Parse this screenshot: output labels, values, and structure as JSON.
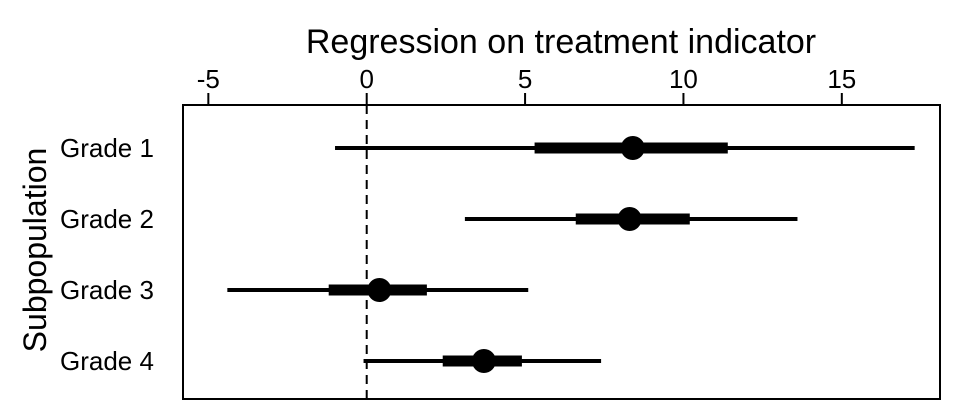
{
  "chart_data": {
    "type": "forest",
    "title": "Regression on treatment indicator",
    "xlabel": "",
    "ylabel": "Subpopulation",
    "x_ticks": [
      -5,
      0,
      5,
      10,
      15
    ],
    "xlim": [
      -5.8,
      18.1
    ],
    "reference_line": 0,
    "categories": [
      "Grade 1",
      "Grade 2",
      "Grade 3",
      "Grade 4"
    ],
    "series": [
      {
        "estimate": [
          8.4,
          8.3,
          0.4,
          3.7
        ],
        "inner_lower": [
          5.3,
          6.6,
          -1.2,
          2.4
        ],
        "inner_upper": [
          11.4,
          10.2,
          1.9,
          4.9
        ],
        "outer_lower": [
          -1.0,
          3.1,
          -4.4,
          -0.1
        ],
        "outer_upper": [
          17.3,
          13.6,
          5.1,
          7.4
        ]
      }
    ]
  }
}
